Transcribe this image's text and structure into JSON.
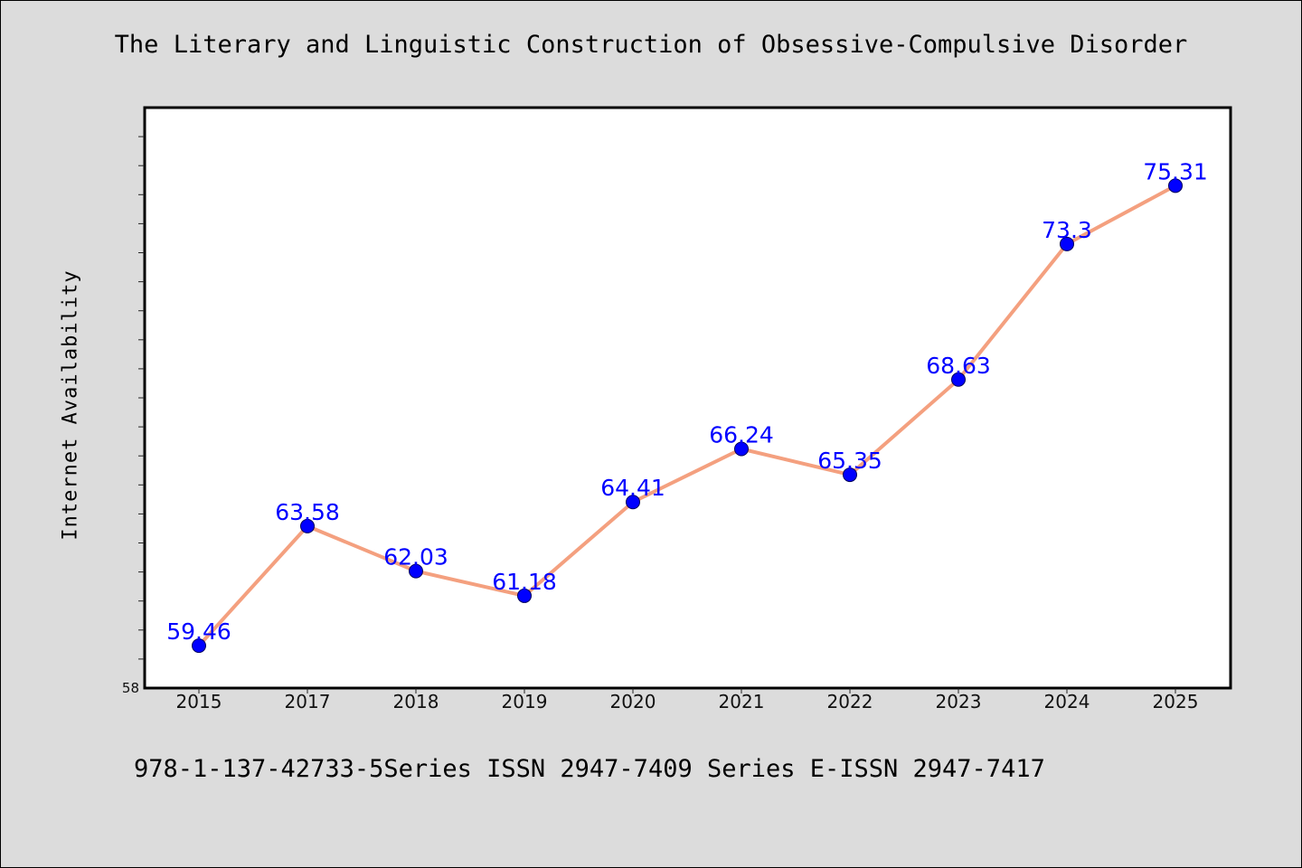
{
  "chart_data": {
    "type": "line",
    "title": "The Literary and Linguistic Construction of Obsessive-Compulsive Disorder",
    "xlabel": "",
    "ylabel": "Internet Availability",
    "categories": [
      "2015",
      "2017",
      "2018",
      "2019",
      "2020",
      "2021",
      "2022",
      "2023",
      "2024",
      "2025"
    ],
    "series": [
      {
        "values": [
          59.46,
          63.58,
          62.03,
          61.18,
          64.41,
          66.24,
          65.35,
          68.63,
          73.3,
          75.31
        ],
        "labels": [
          "59.46",
          "63.58",
          "62.03",
          "61.18",
          "64.41",
          "66.24",
          "65.35",
          "68.63",
          "73.3",
          "75.31"
        ]
      }
    ],
    "ylim": [
      58,
      78
    ],
    "ytick_labels": [
      "58"
    ],
    "grid": false,
    "legend": "none",
    "colors": {
      "line": "#f4a07f",
      "marker": "#0000ff",
      "label": "#0000ff",
      "plot_background": "#ffffff",
      "figure_background": "#dcdcdc"
    }
  },
  "footer": {
    "text": "978-1-137-42733-5Series ISSN 2947-7409 Series E-ISSN 2947-7417"
  }
}
